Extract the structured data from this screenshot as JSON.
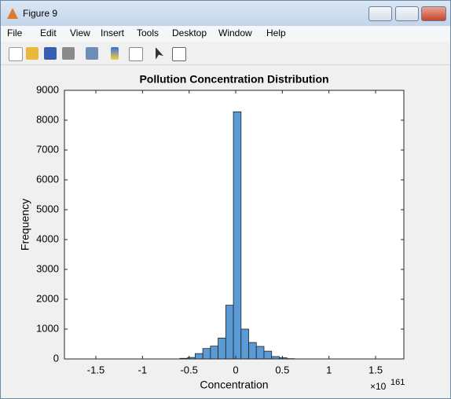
{
  "window": {
    "title": "Figure 9",
    "menu": [
      "File",
      "Edit",
      "View",
      "Insert",
      "Tools",
      "Desktop",
      "Window",
      "Help"
    ]
  },
  "chart_data": {
    "type": "histogram",
    "title": "Pollution Concentration Distribution",
    "x_label": "Concentration",
    "y_label": "Frequency",
    "x_multiplier": "×10",
    "x_exponent": "161",
    "bins": [
      -0.599,
      -0.517,
      -0.435,
      -0.353,
      -0.271,
      -0.189,
      -0.107,
      -0.025,
      0.057,
      0.139,
      0.221,
      0.303,
      0.385,
      0.467,
      0.549,
      0.631
    ],
    "values": [
      20,
      50,
      180,
      350,
      430,
      700,
      1800,
      8280,
      1000,
      550,
      420,
      260,
      80,
      40,
      10
    ],
    "color": "#5b9bd5",
    "xlim": [
      -1.837,
      1.803
    ],
    "xticks": [
      -1.5,
      -1,
      -0.5,
      0,
      0.5,
      1,
      1.5
    ],
    "ylim": [
      0,
      9000
    ],
    "yticks": [
      0,
      1000,
      2000,
      3000,
      4000,
      5000,
      6000,
      7000,
      8000,
      9000
    ]
  }
}
